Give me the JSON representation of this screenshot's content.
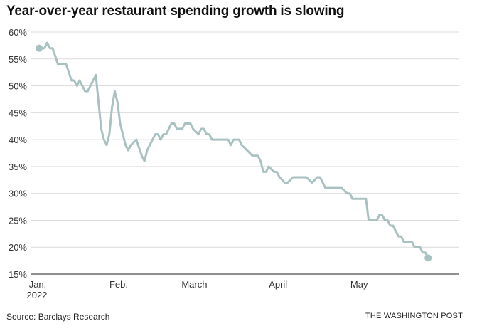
{
  "title": "Year-over-year restaurant spending growth is slowing",
  "source": "Source: Barclays Research",
  "credit": "THE WASHINGTON POST",
  "colors": {
    "line": "#a9c1c1",
    "grid": "#dcdcdc",
    "axis": "#222222"
  },
  "chart_data": {
    "type": "line",
    "title": "Year-over-year restaurant spending growth is slowing",
    "xlabel": "",
    "ylabel": "",
    "ylim": [
      15,
      60
    ],
    "y_ticks": [
      "15%",
      "20%",
      "25%",
      "30%",
      "35%",
      "40%",
      "45%",
      "50%",
      "55%",
      "60%"
    ],
    "x_ticks": [
      {
        "label": "Jan.",
        "sub": "2022",
        "x": "2022-01-02"
      },
      {
        "label": "Feb.",
        "sub": "",
        "x": "2022-02-01"
      },
      {
        "label": "March",
        "sub": "",
        "x": "2022-03-01"
      },
      {
        "label": "April",
        "sub": "",
        "x": "2022-04-01"
      },
      {
        "label": "May",
        "sub": "",
        "x": "2022-05-01"
      }
    ],
    "grid": true,
    "endpoint_markers": true,
    "series": [
      {
        "x": [
          "2022-01-02",
          "2022-01-04",
          "2022-01-05",
          "2022-01-06",
          "2022-01-07",
          "2022-01-09",
          "2022-01-12",
          "2022-01-14",
          "2022-01-15",
          "2022-01-16",
          "2022-01-17",
          "2022-01-19",
          "2022-01-20",
          "2022-01-23",
          "2022-01-25",
          "2022-01-26",
          "2022-01-27",
          "2022-01-28",
          "2022-01-29",
          "2022-01-30",
          "2022-01-31",
          "2022-02-01",
          "2022-02-03",
          "2022-02-04",
          "2022-02-05",
          "2022-02-07",
          "2022-02-09",
          "2022-02-10",
          "2022-02-11",
          "2022-02-13",
          "2022-02-14",
          "2022-02-15",
          "2022-02-16",
          "2022-02-17",
          "2022-02-18",
          "2022-02-20",
          "2022-02-21",
          "2022-02-22",
          "2022-02-24",
          "2022-02-25",
          "2022-02-26",
          "2022-02-27",
          "2022-02-28",
          "2022-03-02",
          "2022-03-03",
          "2022-03-04",
          "2022-03-05",
          "2022-03-06",
          "2022-03-07",
          "2022-03-08",
          "2022-03-09",
          "2022-03-13",
          "2022-03-14",
          "2022-03-15",
          "2022-03-17",
          "2022-03-18",
          "2022-03-20",
          "2022-03-22",
          "2022-03-23",
          "2022-03-24",
          "2022-03-25",
          "2022-03-26",
          "2022-03-27",
          "2022-03-28",
          "2022-03-30",
          "2022-03-31",
          "2022-04-01",
          "2022-04-03",
          "2022-04-04",
          "2022-04-06",
          "2022-04-07",
          "2022-04-08",
          "2022-04-09",
          "2022-04-10",
          "2022-04-11",
          "2022-04-13",
          "2022-04-15",
          "2022-04-16",
          "2022-04-17",
          "2022-04-18",
          "2022-04-20",
          "2022-04-21",
          "2022-04-24",
          "2022-04-26",
          "2022-04-27",
          "2022-04-28",
          "2022-04-29",
          "2022-05-02",
          "2022-05-03",
          "2022-05-04",
          "2022-05-07",
          "2022-05-08",
          "2022-05-09",
          "2022-05-10",
          "2022-05-11",
          "2022-05-12",
          "2022-05-13",
          "2022-05-14",
          "2022-05-15",
          "2022-05-16",
          "2022-05-17",
          "2022-05-18",
          "2022-05-19",
          "2022-05-20",
          "2022-05-21",
          "2022-05-22",
          "2022-05-23",
          "2022-05-24",
          "2022-05-25",
          "2022-05-26"
        ],
        "values": [
          57,
          57,
          58,
          57,
          57,
          54,
          54,
          51,
          51,
          50,
          51,
          49,
          49,
          52,
          42,
          40,
          39,
          41,
          46,
          49,
          47,
          43,
          39,
          38,
          39,
          40,
          37,
          36,
          38,
          40,
          41,
          41,
          40,
          41,
          41,
          43,
          43,
          42,
          42,
          43,
          43,
          43,
          42,
          41,
          42,
          42,
          41,
          41,
          40,
          40,
          40,
          40,
          39,
          40,
          40,
          39,
          38,
          37,
          37,
          37,
          36,
          34,
          34,
          35,
          34,
          34,
          33,
          32,
          32,
          33,
          33,
          33,
          33,
          33,
          33,
          32,
          33,
          33,
          32,
          31,
          31,
          31,
          31,
          30,
          30,
          29,
          29,
          29,
          29,
          25,
          25,
          26,
          26,
          25,
          25,
          24,
          24,
          23,
          22,
          22,
          21,
          21,
          21,
          21,
          20,
          20,
          20,
          19,
          19,
          18
        ]
      }
    ]
  }
}
